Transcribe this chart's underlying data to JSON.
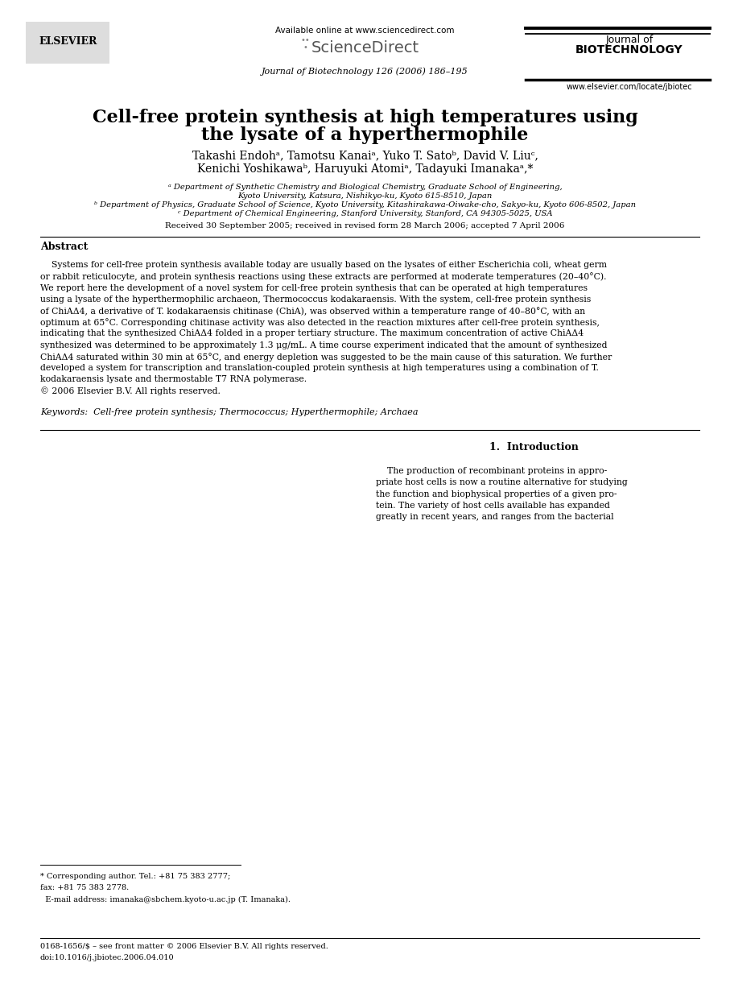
{
  "bg_color": "#ffffff",
  "title_line1": "Cell-free protein synthesis at high temperatures using",
  "title_line2": "the lysate of a hyperthermophile",
  "author_line1": "Takashi Endohᵃ, Tamotsu Kanaiᵃ, Yuko T. Satoᵇ, David V. Liuᶜ,",
  "author_line2": "Kenichi Yoshikawaᵇ, Haruyuki Atomiᵃ, Tadayuki Imanakaᵃ,*",
  "affil_a1": "ᵃ Department of Synthetic Chemistry and Biological Chemistry, Graduate School of Engineering,",
  "affil_a2": "Kyoto University, Katsura, Nishikyo-ku, Kyoto 615-8510, Japan",
  "affil_b": "ᵇ Department of Physics, Graduate School of Science, Kyoto University, Kitashirakawa-Oiwake-cho, Sakyo-ku, Kyoto 606-8502, Japan",
  "affil_c": "ᶜ Department of Chemical Engineering, Stanford University, Stanford, CA 94305-5025, USA",
  "received": "Received 30 September 2005; received in revised form 28 March 2006; accepted 7 April 2006",
  "abstract_title": "Abstract",
  "abstract_lines": [
    "    Systems for cell-free protein synthesis available today are usually based on the lysates of either Escherichia coli, wheat germ",
    "or rabbit reticulocyte, and protein synthesis reactions using these extracts are performed at moderate temperatures (20–40°C).",
    "We report here the development of a novel system for cell-free protein synthesis that can be operated at high temperatures",
    "using a lysate of the hyperthermophilic archaeon, Thermococcus kodakaraensis. With the system, cell-free protein synthesis",
    "of ChiAΔ4, a derivative of T. kodakaraensis chitinase (ChiA), was observed within a temperature range of 40–80°C, with an",
    "optimum at 65°C. Corresponding chitinase activity was also detected in the reaction mixtures after cell-free protein synthesis,",
    "indicating that the synthesized ChiAΔ4 folded in a proper tertiary structure. The maximum concentration of active ChiAΔ4",
    "synthesized was determined to be approximately 1.3 μg/mL. A time course experiment indicated that the amount of synthesized",
    "ChiAΔ4 saturated within 30 min at 65°C, and energy depletion was suggested to be the main cause of this saturation. We further",
    "developed a system for transcription and translation-coupled protein synthesis at high temperatures using a combination of T.",
    "kodakaraensis lysate and thermostable T7 RNA polymerase.",
    "© 2006 Elsevier B.V. All rights reserved."
  ],
  "keywords_line": "Keywords:  Cell-free protein synthesis; Thermococcus; Hyperthermophile; Archaea",
  "intro_title": "1.  Introduction",
  "intro_lines": [
    "    The production of recombinant proteins in appro-",
    "priate host cells is now a routine alternative for studying",
    "the function and biophysical properties of a given pro-",
    "tein. The variety of host cells available has expanded",
    "greatly in recent years, and ranges from the bacterial"
  ],
  "journal_header": "Journal of Biotechnology 126 (2006) 186–195",
  "elsevier_text": "ELSEVIER",
  "available_online": "Available online at www.sciencedirect.com",
  "sd_text": "ScienceDirect",
  "journal_right_line1": "Journal of",
  "journal_right_line2": "BIOTECHNOLOGY",
  "website": "www.elsevier.com/locate/jbiotec",
  "footnote_line1": "* Corresponding author. Tel.: +81 75 383 2777;",
  "footnote_line2": "fax: +81 75 383 2778.",
  "footnote_line3": "  E-mail address: imanaka@sbchem.kyoto-u.ac.jp (T. Imanaka).",
  "issn_line": "0168-1656/$ – see front matter © 2006 Elsevier B.V. All rights reserved.",
  "doi_line": "doi:10.1016/j.jbiotec.2006.04.010",
  "ml": 0.055,
  "mr": 0.958,
  "col_mid": 0.505
}
